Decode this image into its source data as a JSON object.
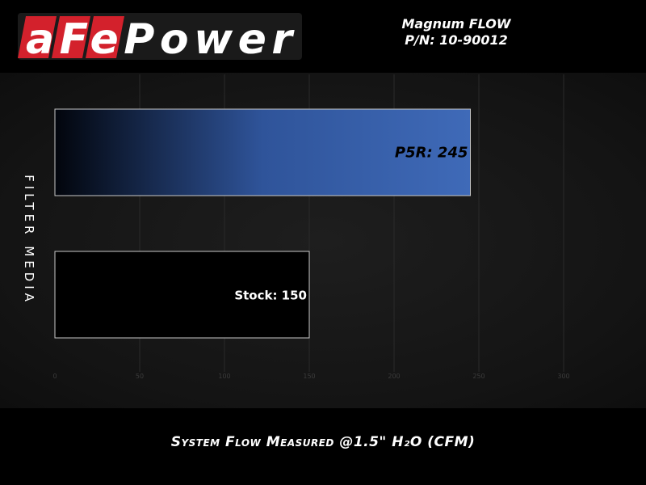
{
  "header": {
    "logo_text": "aFePower",
    "title_line1": "Magnum FLOW",
    "title_line2": "P/N: 10-90012"
  },
  "chart_data": {
    "type": "bar",
    "orientation": "horizontal",
    "categories": [
      "P5R",
      "Stock"
    ],
    "values": [
      245,
      150
    ],
    "data_labels": [
      "P5R: 245",
      "Stock: 150"
    ],
    "xlabel": "System Flow Measured @1.5\" H₂O (CFM)",
    "ylabel": "FILTER MEDIA",
    "xlim": [
      0,
      300
    ],
    "xticks": [
      0,
      50,
      100,
      150,
      200,
      250,
      300
    ],
    "grid": true,
    "colors": {
      "P5R": "#3d68b5",
      "Stock": "#000000",
      "bar_border": "#c8c8c8",
      "logo_red": "#d3212c"
    }
  }
}
